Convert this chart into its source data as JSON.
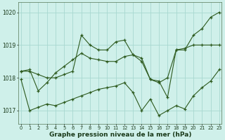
{
  "title": "Graphe pression niveau de la mer (hPa)",
  "bg_color": "#cff0ea",
  "line_color": "#2d5a1e",
  "grid_color": "#a8d8d0",
  "hours": [
    0,
    1,
    2,
    3,
    4,
    5,
    6,
    7,
    8,
    9,
    10,
    11,
    12,
    13,
    14,
    15,
    16,
    17,
    18,
    19,
    20,
    21,
    22,
    23
  ],
  "series1": [
    1018.2,
    1018.2,
    1018.1,
    1018.0,
    1018.0,
    1018.1,
    1018.2,
    1019.3,
    1019.0,
    1018.85,
    1018.85,
    1019.1,
    1019.15,
    1018.7,
    1018.6,
    1017.95,
    1017.9,
    1017.4,
    1018.85,
    1018.85,
    1019.3,
    1019.5,
    1019.85,
    1020.0
  ],
  "series2": [
    1018.2,
    1018.25,
    1017.6,
    1017.85,
    1018.15,
    1018.35,
    1018.55,
    1018.75,
    1018.6,
    1018.55,
    1018.5,
    1018.5,
    1018.65,
    1018.7,
    1018.5,
    1017.95,
    1017.85,
    1018.0,
    1018.85,
    1018.9,
    1019.0,
    1019.0,
    1019.0,
    1019.0
  ],
  "series3": [
    1017.95,
    1017.0,
    1017.1,
    1017.2,
    1017.15,
    1017.25,
    1017.35,
    1017.45,
    1017.55,
    1017.65,
    1017.7,
    1017.75,
    1017.85,
    1017.55,
    1017.0,
    1017.35,
    1016.85,
    1017.0,
    1017.15,
    1017.05,
    1017.45,
    1017.7,
    1017.9,
    1018.25
  ],
  "ylim_min": 1016.6,
  "ylim_max": 1020.3,
  "yticks": [
    1017,
    1018,
    1019,
    1020
  ],
  "ytick_labels": [
    "1017",
    "1018",
    "1019",
    "1020"
  ]
}
